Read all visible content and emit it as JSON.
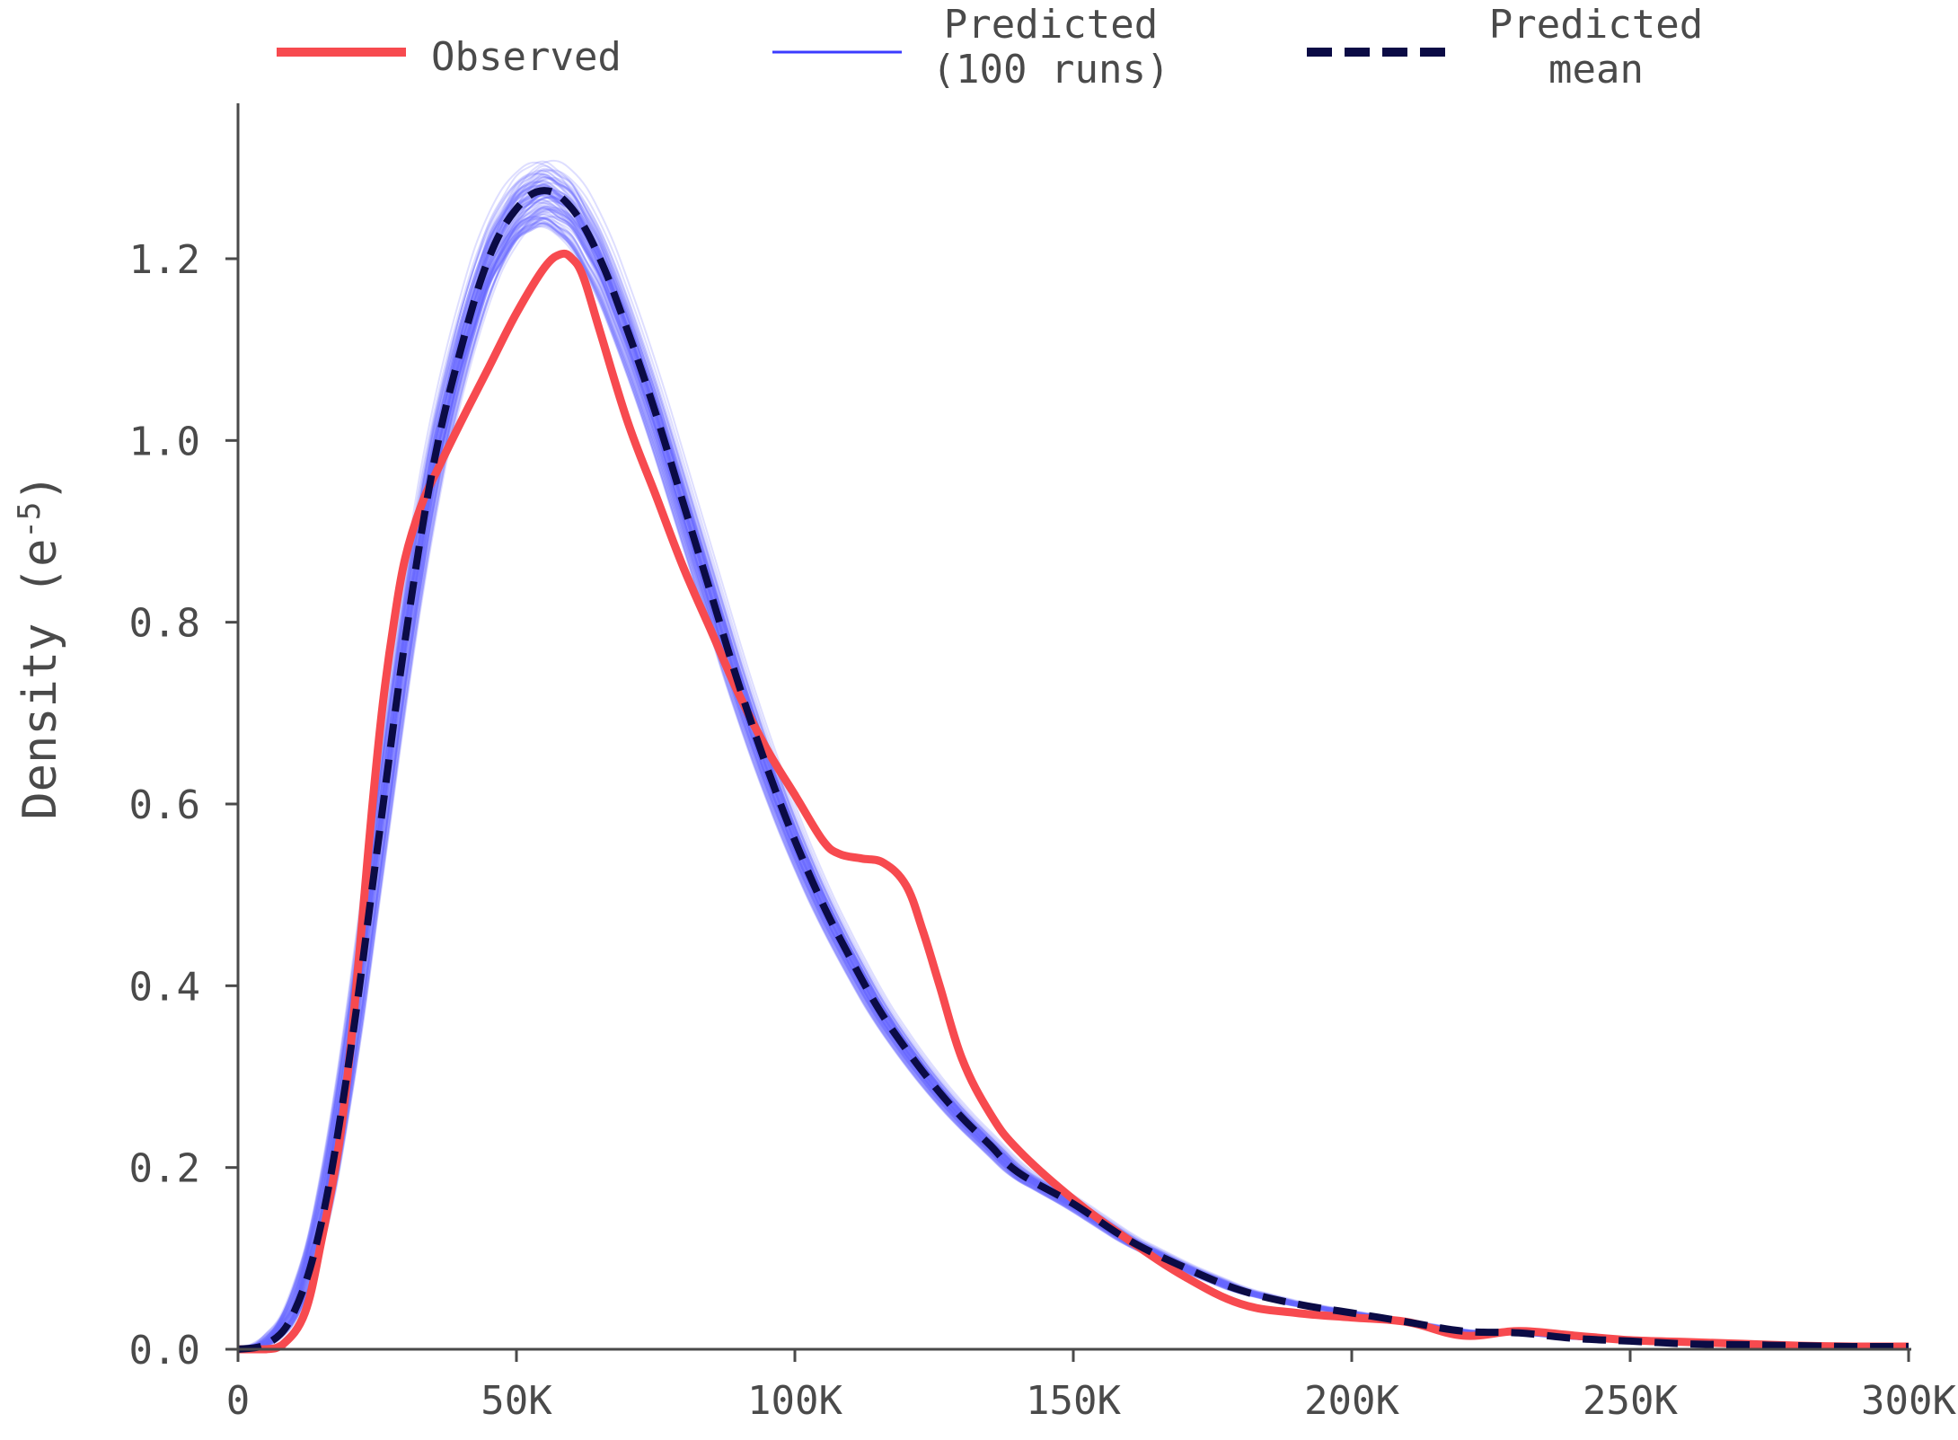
{
  "chart_data": {
    "type": "line",
    "xlabel": "",
    "ylabel": "Density (e",
    "ylabel_sup": "-5",
    "ylabel_close": ")",
    "xlim": [
      0,
      300000
    ],
    "ylim": [
      0,
      1.35
    ],
    "xticks": [
      0,
      50000,
      100000,
      150000,
      200000,
      250000,
      300000
    ],
    "xtick_labels": [
      "0",
      "50K",
      "100K",
      "150K",
      "200K",
      "250K",
      "300K"
    ],
    "yticks": [
      0.0,
      0.2,
      0.4,
      0.6,
      0.8,
      1.0,
      1.2
    ],
    "ytick_labels": [
      "0.0",
      "0.2",
      "0.4",
      "0.6",
      "0.8",
      "1.0",
      "1.2"
    ],
    "grid": false,
    "legend_placement": "top",
    "legend": [
      {
        "lines": [
          "Observed"
        ],
        "style": "solid-thick",
        "color": "#f74a4f"
      },
      {
        "lines": [
          "Predicted",
          "(100 runs)"
        ],
        "style": "solid-thin",
        "color": "#3b3bff"
      },
      {
        "lines": [
          "Predicted",
          "mean"
        ],
        "style": "dashed",
        "color": "#0b0b45"
      }
    ],
    "series": [
      {
        "name": "Observed",
        "color": "#f74a4f",
        "x": [
          0,
          5000,
          8000,
          12000,
          15000,
          18000,
          20000,
          22000,
          24000,
          26000,
          28000,
          30000,
          33000,
          36000,
          40000,
          45000,
          50000,
          55000,
          58000,
          60000,
          62000,
          65000,
          70000,
          75000,
          80000,
          85000,
          90000,
          95000,
          100000,
          105000,
          108000,
          112000,
          116000,
          120000,
          123000,
          126000,
          130000,
          135000,
          140000,
          150000,
          160000,
          170000,
          180000,
          190000,
          200000,
          210000,
          220000,
          230000,
          240000,
          250000,
          260000,
          270000,
          280000,
          290000,
          300000
        ],
        "y": [
          0.0,
          0.0,
          0.005,
          0.04,
          0.12,
          0.22,
          0.32,
          0.45,
          0.59,
          0.71,
          0.8,
          0.87,
          0.93,
          0.97,
          1.02,
          1.08,
          1.14,
          1.19,
          1.205,
          1.2,
          1.18,
          1.12,
          1.02,
          0.94,
          0.86,
          0.79,
          0.72,
          0.66,
          0.61,
          0.56,
          0.545,
          0.54,
          0.535,
          0.51,
          0.46,
          0.4,
          0.32,
          0.26,
          0.22,
          0.165,
          0.12,
          0.08,
          0.05,
          0.04,
          0.035,
          0.03,
          0.015,
          0.02,
          0.015,
          0.01,
          0.008,
          0.006,
          0.004,
          0.003,
          0.003
        ]
      },
      {
        "name": "Predicted mean",
        "color": "#0b0b45",
        "x": [
          0,
          5000,
          10000,
          15000,
          20000,
          25000,
          30000,
          35000,
          40000,
          45000,
          50000,
          55000,
          60000,
          65000,
          70000,
          75000,
          80000,
          85000,
          90000,
          95000,
          100000,
          105000,
          110000,
          115000,
          120000,
          125000,
          130000,
          135000,
          140000,
          150000,
          160000,
          170000,
          180000,
          190000,
          200000,
          210000,
          220000,
          230000,
          240000,
          250000,
          260000,
          270000,
          280000,
          290000,
          300000
        ],
        "y": [
          0.0,
          0.005,
          0.04,
          0.14,
          0.32,
          0.55,
          0.78,
          0.97,
          1.1,
          1.2,
          1.255,
          1.275,
          1.255,
          1.2,
          1.12,
          1.03,
          0.93,
          0.83,
          0.73,
          0.64,
          0.56,
          0.49,
          0.43,
          0.375,
          0.33,
          0.29,
          0.255,
          0.225,
          0.195,
          0.16,
          0.12,
          0.09,
          0.065,
          0.05,
          0.04,
          0.03,
          0.02,
          0.018,
          0.012,
          0.009,
          0.006,
          0.005,
          0.004,
          0.003,
          0.003
        ]
      }
    ],
    "ensemble": {
      "name": "Predicted (100 runs)",
      "runs": 100,
      "color": "#6b6bff"
    }
  }
}
